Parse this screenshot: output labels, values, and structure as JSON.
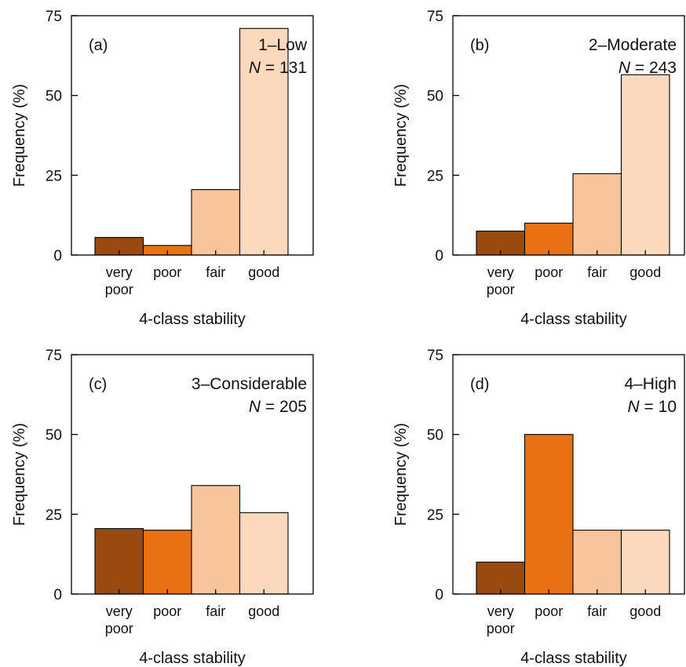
{
  "figure": {
    "n_prefix": "N",
    "n_equals": " = "
  },
  "colors": {
    "very poor": "#9a4a0e",
    "poor": "#e87212",
    "fair": "#f8c49c",
    "good": "#fcd8bd"
  },
  "chart_data": [
    {
      "type": "bar",
      "panel": "(a)",
      "title": "1–Low",
      "n": "131",
      "categories": [
        "very\npoor",
        "poor",
        "fair",
        "good"
      ],
      "values": [
        5.5,
        3,
        20.5,
        71
      ],
      "xlabel": "4-class stability",
      "ylabel": "Frequency (%)",
      "ylim": [
        0,
        75
      ],
      "yticks": [
        0,
        25,
        50,
        75
      ],
      "grid": false
    },
    {
      "type": "bar",
      "panel": "(b)",
      "title": "2–Moderate",
      "n": "243",
      "categories": [
        "very\npoor",
        "poor",
        "fair",
        "good"
      ],
      "values": [
        7.5,
        10,
        25.5,
        56.5
      ],
      "xlabel": "4-class stability",
      "ylabel": "Frequency (%)",
      "ylim": [
        0,
        75
      ],
      "yticks": [
        0,
        25,
        50,
        75
      ],
      "grid": false
    },
    {
      "type": "bar",
      "panel": "(c)",
      "title": "3–Considerable",
      "n": "205",
      "categories": [
        "very\npoor",
        "poor",
        "fair",
        "good"
      ],
      "values": [
        20.5,
        20,
        34,
        25.5
      ],
      "xlabel": "4-class stability",
      "ylabel": "Frequency (%)",
      "ylim": [
        0,
        75
      ],
      "yticks": [
        0,
        25,
        50,
        75
      ],
      "grid": false
    },
    {
      "type": "bar",
      "panel": "(d)",
      "title": "4–High",
      "n": "10",
      "categories": [
        "very\npoor",
        "poor",
        "fair",
        "good"
      ],
      "values": [
        10,
        50,
        20,
        20
      ],
      "xlabel": "4-class stability",
      "ylabel": "Frequency (%)",
      "ylim": [
        0,
        75
      ],
      "yticks": [
        0,
        25,
        50,
        75
      ],
      "grid": false
    }
  ]
}
